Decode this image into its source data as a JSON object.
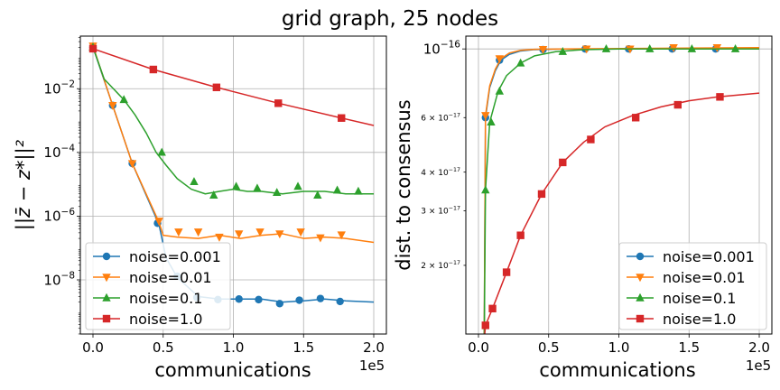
{
  "figure": {
    "title": "grid graph, 25 nodes"
  },
  "colors": {
    "noise=0.001": "#1f77b4",
    "noise=0.01": "#ff7f0e",
    "noise=0.1": "#2ca02c",
    "noise=1.0": "#d62728"
  },
  "chart_data": [
    {
      "type": "line",
      "title": "",
      "xlabel": "communications",
      "ylabel": "||z̄ − z*||²",
      "x_offset_label": "1e5",
      "xlim": [
        -9000,
        209000
      ],
      "ylim_log10": [
        -9.7,
        -0.35
      ],
      "yscale": "log",
      "grid": true,
      "legend": "lower-left",
      "xticks": [
        {
          "value": 0,
          "label": "0.0"
        },
        {
          "value": 50000,
          "label": "0.5"
        },
        {
          "value": 100000,
          "label": "1.0"
        },
        {
          "value": 150000,
          "label": "1.5"
        },
        {
          "value": 200000,
          "label": "2.0"
        }
      ],
      "yticks": [
        {
          "exp": -2,
          "label": "10",
          "sup": "−2"
        },
        {
          "exp": -4,
          "label": "10",
          "sup": "−4"
        },
        {
          "exp": -6,
          "label": "10",
          "sup": "−6"
        },
        {
          "exp": -8,
          "label": "10",
          "sup": "−8"
        }
      ],
      "series": [
        {
          "name": "noise=0.001",
          "marker": "circle",
          "points": [
            [
              0,
              0.2
            ],
            [
              14000,
              0.003
            ],
            [
              28000,
              4.5e-05
            ],
            [
              47000,
              5.5e-07
            ],
            [
              52000,
              5e-08
            ],
            [
              60000,
              1.2e-08
            ],
            [
              75000,
              3e-09
            ],
            [
              90000,
              2.5e-09
            ],
            [
              105000,
              2.5e-09
            ],
            [
              120000,
              2.5e-09
            ],
            [
              135000,
              2e-09
            ],
            [
              150000,
              2.2e-09
            ],
            [
              165000,
              2.5e-09
            ],
            [
              180000,
              2.2e-09
            ],
            [
              200000,
              2e-09
            ]
          ],
          "markers": [
            [
              0,
              0.2
            ],
            [
              14000,
              0.003
            ],
            [
              28000,
              4.5e-05
            ],
            [
              46000,
              6e-07
            ],
            [
              60000,
              1.3e-08
            ],
            [
              74000,
              2.8e-09
            ],
            [
              89000,
              2.4e-09
            ],
            [
              104000,
              2.5e-09
            ],
            [
              118000,
              2.4e-09
            ],
            [
              133000,
              1.8e-09
            ],
            [
              147000,
              2.3e-09
            ],
            [
              162000,
              2.6e-09
            ],
            [
              176000,
              2.1e-09
            ]
          ]
        },
        {
          "name": "noise=0.01",
          "marker": "triangle-down",
          "points": [
            [
              0,
              0.22
            ],
            [
              14000,
              0.003
            ],
            [
              28000,
              4.5e-05
            ],
            [
              47000,
              6.5e-07
            ],
            [
              50000,
              2.5e-07
            ],
            [
              60000,
              2.2e-07
            ],
            [
              75000,
              2e-07
            ],
            [
              90000,
              2.5e-07
            ],
            [
              105000,
              2e-07
            ],
            [
              120000,
              2.5e-07
            ],
            [
              135000,
              2.8e-07
            ],
            [
              150000,
              2e-07
            ],
            [
              165000,
              2.2e-07
            ],
            [
              180000,
              2e-07
            ],
            [
              200000,
              1.5e-07
            ]
          ],
          "markers": [
            [
              0,
              0.22
            ],
            [
              14000,
              0.003
            ],
            [
              28000,
              4.5e-05
            ],
            [
              47000,
              7e-07
            ],
            [
              61000,
              3.2e-07
            ],
            [
              75000,
              3.2e-07
            ],
            [
              90000,
              2.2e-07
            ],
            [
              104000,
              2.8e-07
            ],
            [
              119000,
              3.2e-07
            ],
            [
              133000,
              2.8e-07
            ],
            [
              148000,
              3.2e-07
            ],
            [
              162000,
              2.1e-07
            ],
            [
              177000,
              2.6e-07
            ]
          ]
        },
        {
          "name": "noise=0.1",
          "marker": "triangle-up",
          "points": [
            [
              0,
              0.2
            ],
            [
              8000,
              0.02
            ],
            [
              22000,
              0.0045
            ],
            [
              30000,
              0.0015
            ],
            [
              38000,
              0.0004
            ],
            [
              45000,
              0.0001
            ],
            [
              52000,
              4e-05
            ],
            [
              60000,
              1.5e-05
            ],
            [
              70000,
              7e-06
            ],
            [
              80000,
              5e-06
            ],
            [
              90000,
              6e-06
            ],
            [
              100000,
              7e-06
            ],
            [
              110000,
              6e-06
            ],
            [
              120000,
              6e-06
            ],
            [
              135000,
              5e-06
            ],
            [
              150000,
              6e-06
            ],
            [
              165000,
              6e-06
            ],
            [
              180000,
              5e-06
            ],
            [
              200000,
              5e-06
            ]
          ],
          "markers": [
            [
              0,
              0.2
            ],
            [
              22000,
              0.0045
            ],
            [
              49000,
              0.0001
            ],
            [
              72000,
              1.2e-05
            ],
            [
              86000,
              4.5e-06
            ],
            [
              102000,
              8.5e-06
            ],
            [
              117000,
              7.5e-06
            ],
            [
              131000,
              5.5e-06
            ],
            [
              146000,
              8.5e-06
            ],
            [
              160000,
              4.5e-06
            ],
            [
              174000,
              6.5e-06
            ],
            [
              189000,
              6e-06
            ]
          ]
        },
        {
          "name": "noise=1.0",
          "marker": "square",
          "points": [
            [
              0,
              0.18
            ],
            [
              43000,
              0.04
            ],
            [
              88000,
              0.011
            ],
            [
              132000,
              0.0035
            ],
            [
              177000,
              0.0012
            ],
            [
              200000,
              0.0007
            ]
          ],
          "markers": [
            [
              0,
              0.18
            ],
            [
              43000,
              0.04
            ],
            [
              88000,
              0.011
            ],
            [
              132000,
              0.0035
            ],
            [
              177000,
              0.0012
            ]
          ]
        }
      ]
    },
    {
      "type": "line",
      "title": "",
      "xlabel": "communications",
      "ylabel": "dist. to consensus",
      "x_offset_label": "1e5",
      "xlim": [
        -9000,
        209000
      ],
      "ylim": [
        1.2e-17,
        1.1e-16
      ],
      "yscale": "log",
      "grid": true,
      "legend": "lower-right",
      "xticks": [
        {
          "value": 0,
          "label": "0.0"
        },
        {
          "value": 50000,
          "label": "0.5"
        },
        {
          "value": 100000,
          "label": "1.0"
        },
        {
          "value": 150000,
          "label": "1.5"
        },
        {
          "value": 200000,
          "label": "2.0"
        }
      ],
      "yticks_major": [
        {
          "value": 1e-16,
          "label": "10",
          "sup": "−16"
        }
      ],
      "yticks_minor": [
        {
          "value": 6e-17,
          "label": "6 × 10",
          "sup": "−17"
        },
        {
          "value": 4e-17,
          "label": "4 × 10",
          "sup": "−17"
        },
        {
          "value": 3e-17,
          "label": "3 × 10",
          "sup": "−17"
        },
        {
          "value": 2e-17,
          "label": "2 × 10",
          "sup": "−17"
        }
      ],
      "series": [
        {
          "name": "noise=0.001",
          "marker": "circle",
          "points": [
            [
              4000,
              1e-17
            ],
            [
              5000,
              6e-17
            ],
            [
              8000,
              7.5e-17
            ],
            [
              12000,
              8.5e-17
            ],
            [
              16000,
              9.2e-17
            ],
            [
              22000,
              9.6e-17
            ],
            [
              30000,
              9.85e-17
            ],
            [
              40000,
              9.95e-17
            ],
            [
              60000,
              1e-16
            ],
            [
              200000,
              1e-16
            ]
          ],
          "markers": [
            [
              5000,
              6e-17
            ],
            [
              15000,
              9.2e-17
            ],
            [
              46000,
              9.95e-17
            ],
            [
              76000,
              1e-16
            ],
            [
              107000,
              1e-16
            ],
            [
              138000,
              1e-16
            ],
            [
              169000,
              1e-16
            ]
          ]
        },
        {
          "name": "noise=0.01",
          "marker": "triangle-down",
          "points": [
            [
              4000,
              1e-17
            ],
            [
              5000,
              6.1e-17
            ],
            [
              8000,
              7.6e-17
            ],
            [
              12000,
              8.6e-17
            ],
            [
              16000,
              9.3e-17
            ],
            [
              22000,
              9.7e-17
            ],
            [
              30000,
              9.9e-17
            ],
            [
              40000,
              9.97e-17
            ],
            [
              60000,
              1e-16
            ],
            [
              200000,
              1.01e-16
            ]
          ],
          "markers": [
            [
              5000,
              6.1e-17
            ],
            [
              15000,
              9.3e-17
            ],
            [
              46000,
              9.97e-17
            ],
            [
              77000,
              1e-16
            ],
            [
              108000,
              1e-16
            ],
            [
              139000,
              1.01e-16
            ],
            [
              170000,
              1.01e-16
            ]
          ]
        },
        {
          "name": "noise=0.1",
          "marker": "triangle-up",
          "points": [
            [
              4000,
              1e-17
            ],
            [
              5000,
              3.5e-17
            ],
            [
              8000,
              5.8e-17
            ],
            [
              14000,
              7.3e-17
            ],
            [
              20000,
              8.2e-17
            ],
            [
              30000,
              9e-17
            ],
            [
              40000,
              9.5e-17
            ],
            [
              55000,
              9.8e-17
            ],
            [
              75000,
              9.95e-17
            ],
            [
              100000,
              1e-16
            ],
            [
              200000,
              1e-16
            ]
          ],
          "markers": [
            [
              5000,
              3.5e-17
            ],
            [
              9000,
              5.8e-17
            ],
            [
              15000,
              7.3e-17
            ],
            [
              30000,
              9e-17
            ],
            [
              60000,
              9.8e-17
            ],
            [
              91000,
              1e-16
            ],
            [
              122000,
              1e-16
            ],
            [
              152000,
              1e-16
            ],
            [
              183000,
              1e-16
            ]
          ]
        },
        {
          "name": "noise=1.0",
          "marker": "square",
          "points": [
            [
              3000,
              1e-17
            ],
            [
              5000,
              1.28e-17
            ],
            [
              10000,
              1.45e-17
            ],
            [
              20000,
              1.9e-17
            ],
            [
              30000,
              2.5e-17
            ],
            [
              45000,
              3.4e-17
            ],
            [
              60000,
              4.3e-17
            ],
            [
              75000,
              5e-17
            ],
            [
              90000,
              5.6e-17
            ],
            [
              110000,
              6.1e-17
            ],
            [
              130000,
              6.5e-17
            ],
            [
              150000,
              6.8e-17
            ],
            [
              170000,
              7e-17
            ],
            [
              200000,
              7.2e-17
            ]
          ],
          "markers": [
            [
              5000,
              1.28e-17
            ],
            [
              10000,
              1.45e-17
            ],
            [
              20000,
              1.9e-17
            ],
            [
              30000,
              2.5e-17
            ],
            [
              45000,
              3.4e-17
            ],
            [
              60000,
              4.3e-17
            ],
            [
              80000,
              5.1e-17
            ],
            [
              112000,
              6e-17
            ],
            [
              142000,
              6.6e-17
            ],
            [
              172000,
              7e-17
            ]
          ]
        }
      ]
    }
  ]
}
